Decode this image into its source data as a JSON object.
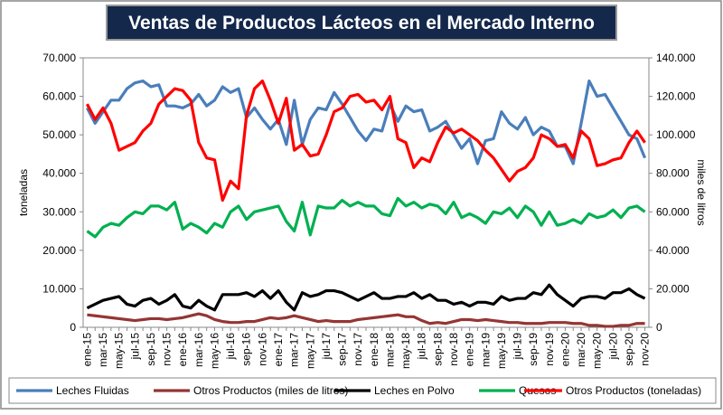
{
  "chart_data": {
    "type": "line",
    "title": "Ventas de Productos Lácteos en el Mercado Interno",
    "y_label": "toneladas",
    "y2_label": "miles de litros",
    "grid": false,
    "categories": [
      "ene-15",
      null,
      "mar-15",
      null,
      "may-15",
      null,
      "jul-15",
      null,
      "sep-15",
      null,
      "nov-15",
      null,
      "ene-16",
      null,
      "mar-16",
      null,
      "may-16",
      null,
      "jul-16",
      null,
      "sep-16",
      null,
      "nov-16",
      null,
      "ene-17",
      null,
      "mar-17",
      null,
      "may-17",
      null,
      "jul-17",
      null,
      "sep-17",
      null,
      "nov-17",
      null,
      "ene-18",
      null,
      "mar-18",
      null,
      "may-18",
      null,
      "jul-18",
      null,
      "sep-18",
      null,
      "nov-18",
      null,
      "ene-19",
      null,
      "mar-19",
      null,
      "may-19",
      null,
      "jul-19",
      null,
      "sep-19",
      null,
      "nov-19",
      null,
      "ene-20",
      null,
      "mar-20",
      null,
      "may-20",
      null,
      "jul-20",
      null,
      "sep-20",
      null,
      "nov-20"
    ],
    "ylim": [
      0,
      70000
    ],
    "yticks": [
      0,
      {
        "value": 10000,
        "label": "10.000"
      },
      {
        "value": 20000,
        "label": "20.000"
      },
      {
        "value": 30000,
        "label": "30.000"
      },
      {
        "value": 40000,
        "label": "40.000"
      },
      {
        "value": 50000,
        "label": "50.000"
      },
      {
        "value": 60000,
        "label": "60.000"
      },
      {
        "value": 70000,
        "label": "70.000"
      }
    ],
    "y2lim": [
      0,
      140000
    ],
    "y2ticks": [
      0,
      {
        "value": 20000,
        "label": "20.000"
      },
      {
        "value": 40000,
        "label": "40.000"
      },
      {
        "value": 60000,
        "label": "60.000"
      },
      {
        "value": 80000,
        "label": "80.000"
      },
      {
        "value": 100000,
        "label": "100.000"
      },
      {
        "value": 120000,
        "label": "120.000"
      },
      {
        "value": 140000,
        "label": "140.000"
      }
    ],
    "series": [
      {
        "name": "Leches Fluidas",
        "color": "#4a7ebb",
        "axis": "y2",
        "values": [
          114000,
          106000,
          112000,
          118000,
          118000,
          124000,
          127000,
          128000,
          125000,
          126000,
          115000,
          115000,
          114000,
          116000,
          121000,
          115000,
          118000,
          125000,
          122000,
          124000,
          109000,
          114000,
          108000,
          103000,
          108000,
          95000,
          118000,
          95000,
          108000,
          114000,
          113000,
          122000,
          116000,
          109000,
          102000,
          97000,
          103000,
          102000,
          116000,
          107000,
          115000,
          112000,
          113000,
          102000,
          104000,
          107000,
          100000,
          93000,
          98000,
          85000,
          97000,
          98000,
          112000,
          106000,
          103000,
          109000,
          100000,
          104000,
          102000,
          94000,
          94000,
          85000,
          106000,
          128000,
          120000,
          121000,
          114000,
          107000,
          100000,
          98000,
          88000
        ]
      },
      {
        "name": "Otros Productos (miles de litros)",
        "color": "#943634",
        "axis": "y2",
        "values": [
          6500,
          6000,
          5500,
          5000,
          4500,
          4000,
          3500,
          4000,
          4500,
          4500,
          4000,
          4500,
          5000,
          6000,
          7000,
          6000,
          4000,
          3000,
          2500,
          2500,
          3000,
          3000,
          4000,
          5000,
          4500,
          5000,
          6000,
          5000,
          4000,
          3000,
          3500,
          3000,
          3000,
          3000,
          4000,
          4500,
          5000,
          5500,
          6000,
          6500,
          5500,
          5500,
          3500,
          2000,
          2500,
          2000,
          3000,
          4000,
          4000,
          3500,
          4000,
          3500,
          3000,
          2500,
          2500,
          2000,
          2000,
          2000,
          2500,
          2500,
          2500,
          2000,
          2000,
          1000,
          1000,
          500,
          500,
          1000,
          1000,
          2000,
          2000
        ]
      },
      {
        "name": "Leches en Polvo",
        "color": "#000000",
        "values": [
          5000,
          6000,
          7000,
          7500,
          8000,
          6000,
          5500,
          7000,
          7500,
          6000,
          7000,
          8500,
          5500,
          5000,
          7000,
          5500,
          4500,
          8500,
          8500,
          8500,
          9000,
          8000,
          9500,
          7500,
          9500,
          6500,
          4500,
          9000,
          8000,
          8500,
          9500,
          9500,
          9000,
          8000,
          7000,
          8000,
          9000,
          7500,
          7500,
          8000,
          8000,
          9000,
          7500,
          8500,
          7000,
          7000,
          6000,
          6500,
          5500,
          6500,
          6500,
          6000,
          8000,
          7000,
          7500,
          7500,
          9000,
          8500,
          11000,
          8500,
          7000,
          5500,
          7500,
          8000,
          8000,
          7500,
          9000,
          9000,
          10000,
          8500,
          7500
        ]
      },
      {
        "name": "Quesos",
        "color": "#00b050",
        "values": [
          25000,
          23500,
          26000,
          27000,
          26500,
          28500,
          30000,
          29500,
          31500,
          31500,
          30500,
          32500,
          25500,
          27000,
          26000,
          24500,
          27000,
          26000,
          30000,
          31500,
          28000,
          30000,
          30500,
          31000,
          31500,
          27500,
          25000,
          32500,
          24000,
          31500,
          31000,
          31000,
          33000,
          31500,
          32500,
          31500,
          31500,
          29500,
          29000,
          33500,
          31500,
          32500,
          31000,
          32000,
          31500,
          29500,
          32500,
          28500,
          29500,
          28500,
          27000,
          30000,
          29500,
          31000,
          28500,
          31500,
          30000,
          26500,
          30000,
          26500,
          27000,
          28000,
          27000,
          29500,
          28500,
          29000,
          30500,
          28500,
          31000,
          31500,
          30000
        ]
      },
      {
        "name": "Otros Productos (toneladas)",
        "color": "#ff0000",
        "values": [
          58000,
          54000,
          57000,
          53000,
          46000,
          47000,
          48000,
          51000,
          53000,
          58000,
          60000,
          62000,
          61500,
          59000,
          48000,
          44000,
          43500,
          33000,
          38000,
          36000,
          55000,
          62000,
          64000,
          59000,
          53000,
          59500,
          46000,
          47500,
          44500,
          45000,
          50000,
          56000,
          57000,
          60000,
          60500,
          58500,
          59000,
          56500,
          60000,
          49000,
          48000,
          41500,
          44000,
          43000,
          48000,
          52000,
          50500,
          51500,
          50000,
          48500,
          46000,
          44000,
          41000,
          38000,
          40500,
          41500,
          44000,
          50000,
          49000,
          47000,
          47500,
          44000,
          51000,
          49000,
          42000,
          42500,
          43500,
          44000,
          48000,
          51000,
          48000
        ]
      }
    ]
  }
}
